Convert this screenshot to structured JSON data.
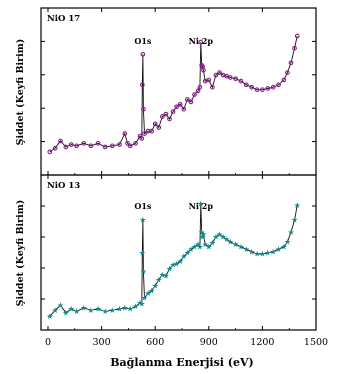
{
  "figure": {
    "xlabel": "Bağlanma Enerjisi (eV)",
    "ylabel": "Şiddet (Keyfi Birim)",
    "x_ticks": [
      "0",
      "300",
      "600",
      "900",
      "1200",
      "1500"
    ]
  },
  "chart_data": [
    {
      "type": "line",
      "panel": "top",
      "label": "NiO 17",
      "color": "#8b1a8b",
      "marker": "circle",
      "xlim": [
        0,
        1500
      ],
      "ylim": [
        0,
        100
      ],
      "annotations": [
        {
          "text": "O1s",
          "x": 531
        },
        {
          "text": "Ni 2p",
          "x": 855
        }
      ],
      "series": [
        {
          "x": [
            10,
            40,
            70,
            100,
            130,
            160,
            200,
            240,
            280,
            320,
            360,
            400,
            430,
            445,
            460,
            490,
            515,
            525,
            528,
            531,
            534,
            540,
            560,
            580,
            600,
            620,
            640,
            660,
            680,
            700,
            720,
            740,
            760,
            780,
            800,
            820,
            840,
            850,
            855,
            860,
            865,
            870,
            880,
            900,
            920,
            940,
            960,
            980,
            1000,
            1020,
            1050,
            1080,
            1110,
            1140,
            1170,
            1200,
            1230,
            1260,
            1290,
            1320,
            1340,
            1360,
            1380,
            1395
          ],
          "y": [
            5,
            8,
            14,
            9,
            11,
            10,
            12,
            10,
            12,
            9,
            10,
            11,
            20,
            12,
            10,
            12,
            18,
            16,
            60,
            85,
            40,
            20,
            22,
            22,
            28,
            25,
            34,
            36,
            32,
            38,
            42,
            44,
            40,
            48,
            46,
            52,
            55,
            58,
            95,
            76,
            75,
            72,
            63,
            64,
            58,
            68,
            70,
            68,
            67,
            66,
            65,
            63,
            60,
            58,
            56,
            56,
            57,
            58,
            60,
            64,
            70,
            78,
            90,
            100
          ]
        }
      ]
    },
    {
      "type": "line",
      "panel": "bottom",
      "label": "NiO 13",
      "color": "#0f8a8a",
      "marker": "star",
      "xlim": [
        0,
        1500
      ],
      "ylim": [
        0,
        100
      ],
      "annotations": [
        {
          "text": "O1s",
          "x": 531
        },
        {
          "text": "Ni 2p",
          "x": 855
        }
      ],
      "series": [
        {
          "x": [
            10,
            40,
            70,
            100,
            130,
            160,
            200,
            240,
            280,
            320,
            360,
            400,
            430,
            460,
            490,
            515,
            525,
            528,
            531,
            534,
            540,
            560,
            580,
            600,
            620,
            640,
            660,
            680,
            700,
            720,
            740,
            760,
            780,
            800,
            820,
            840,
            850,
            855,
            860,
            865,
            870,
            880,
            900,
            920,
            940,
            960,
            980,
            1000,
            1020,
            1050,
            1080,
            1110,
            1140,
            1170,
            1200,
            1230,
            1260,
            1290,
            1320,
            1340,
            1360,
            1380,
            1395
          ],
          "y": [
            3,
            8,
            12,
            6,
            9,
            7,
            10,
            8,
            9,
            7,
            8,
            9,
            10,
            9,
            11,
            14,
            13,
            55,
            82,
            40,
            18,
            22,
            24,
            28,
            33,
            37,
            36,
            42,
            45,
            46,
            48,
            52,
            55,
            58,
            60,
            62,
            60,
            95,
            72,
            68,
            70,
            62,
            60,
            63,
            68,
            70,
            68,
            66,
            64,
            62,
            60,
            58,
            56,
            54,
            54,
            55,
            56,
            58,
            60,
            64,
            72,
            82,
            94
          ]
        }
      ]
    }
  ]
}
